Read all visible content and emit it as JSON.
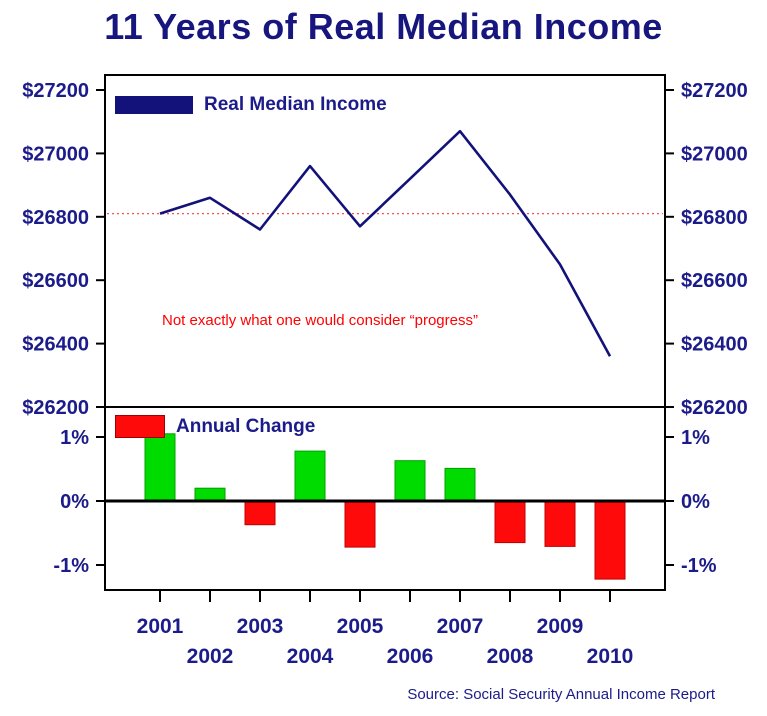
{
  "page": {
    "title": "11 Years of Real Median Income",
    "annotation": "Not exactly what one would consider “progress”",
    "source": "Source: Social Security Annual Income Report"
  },
  "colors": {
    "navy_text": "#1B1B8A",
    "line": "#12127A",
    "ref_line": "#FF5050",
    "green": "#00DB00",
    "green_edge": "#00A000",
    "red": "#FF0A0A",
    "red_edge": "#C00000",
    "axis": "#000000"
  },
  "chart_data": [
    {
      "type": "line",
      "legend": "Real Median Income",
      "x": [
        "2001",
        "2002",
        "2003",
        "2004",
        "2005",
        "2006",
        "2007",
        "2008",
        "2009",
        "2010"
      ],
      "values": [
        26810,
        26860,
        26760,
        26960,
        26770,
        26920,
        27070,
        26870,
        26650,
        26360
      ],
      "ylim": [
        26200,
        27200
      ],
      "ytick_values": [
        27200,
        27000,
        26800,
        26600,
        26400,
        26200
      ],
      "ytick_labels": [
        "$27200",
        "$27000",
        "$26800",
        "$26600",
        "$26400",
        "$26200"
      ],
      "reference_line": 26810,
      "grid": false,
      "legend_position": "top-left-inside",
      "yaxis_labels_both_sides": true
    },
    {
      "type": "bar",
      "legend": "Annual Change",
      "categories": [
        "2001",
        "2002",
        "2003",
        "2004",
        "2005",
        "2006",
        "2007",
        "2008",
        "2009",
        "2010"
      ],
      "values": [
        1.05,
        0.2,
        -0.37,
        0.78,
        -0.72,
        0.63,
        0.51,
        -0.65,
        -0.71,
        -1.22
      ],
      "ylim": [
        -1.4,
        1.15
      ],
      "ytick_values": [
        1,
        0,
        -1
      ],
      "ytick_labels": [
        "1%",
        "0%",
        "-1%"
      ],
      "positive_color": "#00DB00",
      "negative_color": "#FF0A0A",
      "legend_position": "top-left-inside",
      "yaxis_labels_both_sides": true
    }
  ]
}
